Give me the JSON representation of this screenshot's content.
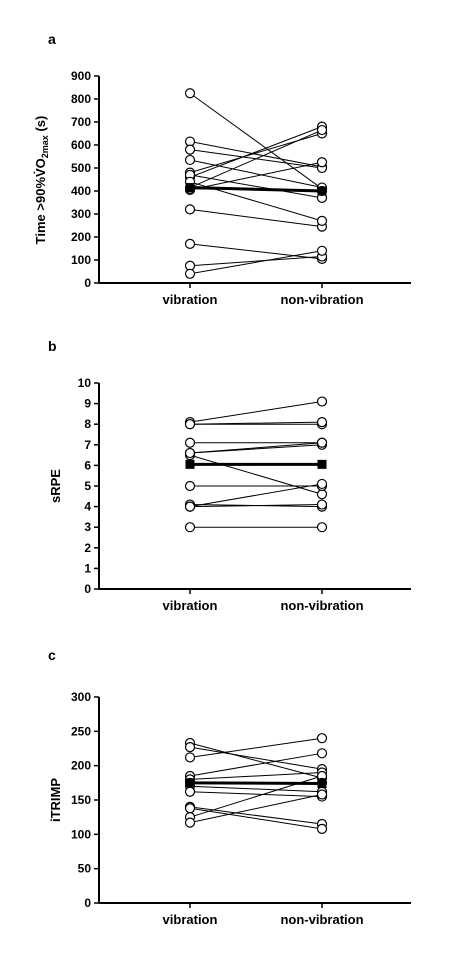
{
  "chart_data": [
    {
      "type": "scatter",
      "panel_label": "a",
      "ylabel_main": "Time >90%",
      "ylabel_vo": "V̇O",
      "ylabel_sub": "2max",
      "ylabel_unit": " (s)",
      "categories": [
        "vibration",
        "non-vibration"
      ],
      "ylim": [
        0,
        900
      ],
      "yticks": [
        0,
        100,
        200,
        300,
        400,
        500,
        600,
        700,
        800,
        900
      ],
      "ytick_labels": [
        "0",
        "100",
        "200",
        "300",
        "400",
        "500",
        "600",
        "700",
        "800",
        "900"
      ],
      "pairs": [
        [
          825,
          410
        ],
        [
          615,
          505
        ],
        [
          580,
          500
        ],
        [
          535,
          415
        ],
        [
          480,
          650
        ],
        [
          460,
          680
        ],
        [
          415,
          665
        ],
        [
          405,
          525
        ],
        [
          320,
          245
        ],
        [
          170,
          105
        ],
        [
          75,
          115
        ],
        [
          40,
          140
        ],
        [
          470,
          370
        ],
        [
          440,
          270
        ],
        [
          410,
          400
        ]
      ],
      "mean": [
        415,
        400
      ]
    },
    {
      "type": "scatter",
      "panel_label": "b",
      "ylabel": "sRPE",
      "categories": [
        "vibration",
        "non-vibration"
      ],
      "ylim": [
        0,
        10
      ],
      "yticks": [
        0,
        1,
        2,
        3,
        4,
        5,
        6,
        7,
        8,
        9,
        10
      ],
      "ytick_labels": [
        "0",
        "1",
        "2",
        "3",
        "4",
        "5",
        "6",
        "7",
        "8",
        "9",
        "10"
      ],
      "pairs": [
        [
          8.1,
          9.1
        ],
        [
          8.0,
          8.0
        ],
        [
          8.0,
          8.1
        ],
        [
          7.1,
          7.1
        ],
        [
          6.6,
          7.0
        ],
        [
          6.5,
          4.6
        ],
        [
          5.0,
          5.0
        ],
        [
          4.1,
          4.0
        ],
        [
          4.0,
          5.1
        ],
        [
          4.0,
          4.1
        ],
        [
          3.0,
          3.0
        ],
        [
          6.6,
          7.1
        ]
      ],
      "mean": [
        6.05,
        6.05
      ]
    },
    {
      "type": "scatter",
      "panel_label": "c",
      "ylabel": "iTRIMP",
      "categories": [
        "vibration",
        "non-vibration"
      ],
      "ylim": [
        0,
        300
      ],
      "yticks": [
        0,
        50,
        100,
        150,
        200,
        250,
        300
      ],
      "ytick_labels": [
        "0",
        "50",
        "100",
        "150",
        "200",
        "250",
        "300"
      ],
      "pairs": [
        [
          233,
          182
        ],
        [
          227,
          195
        ],
        [
          212,
          240
        ],
        [
          185,
          218
        ],
        [
          180,
          190
        ],
        [
          170,
          162
        ],
        [
          162,
          155
        ],
        [
          140,
          115
        ],
        [
          138,
          108
        ],
        [
          125,
          185
        ],
        [
          117,
          158
        ],
        [
          175,
          175
        ]
      ],
      "mean": [
        175,
        174
      ]
    }
  ]
}
